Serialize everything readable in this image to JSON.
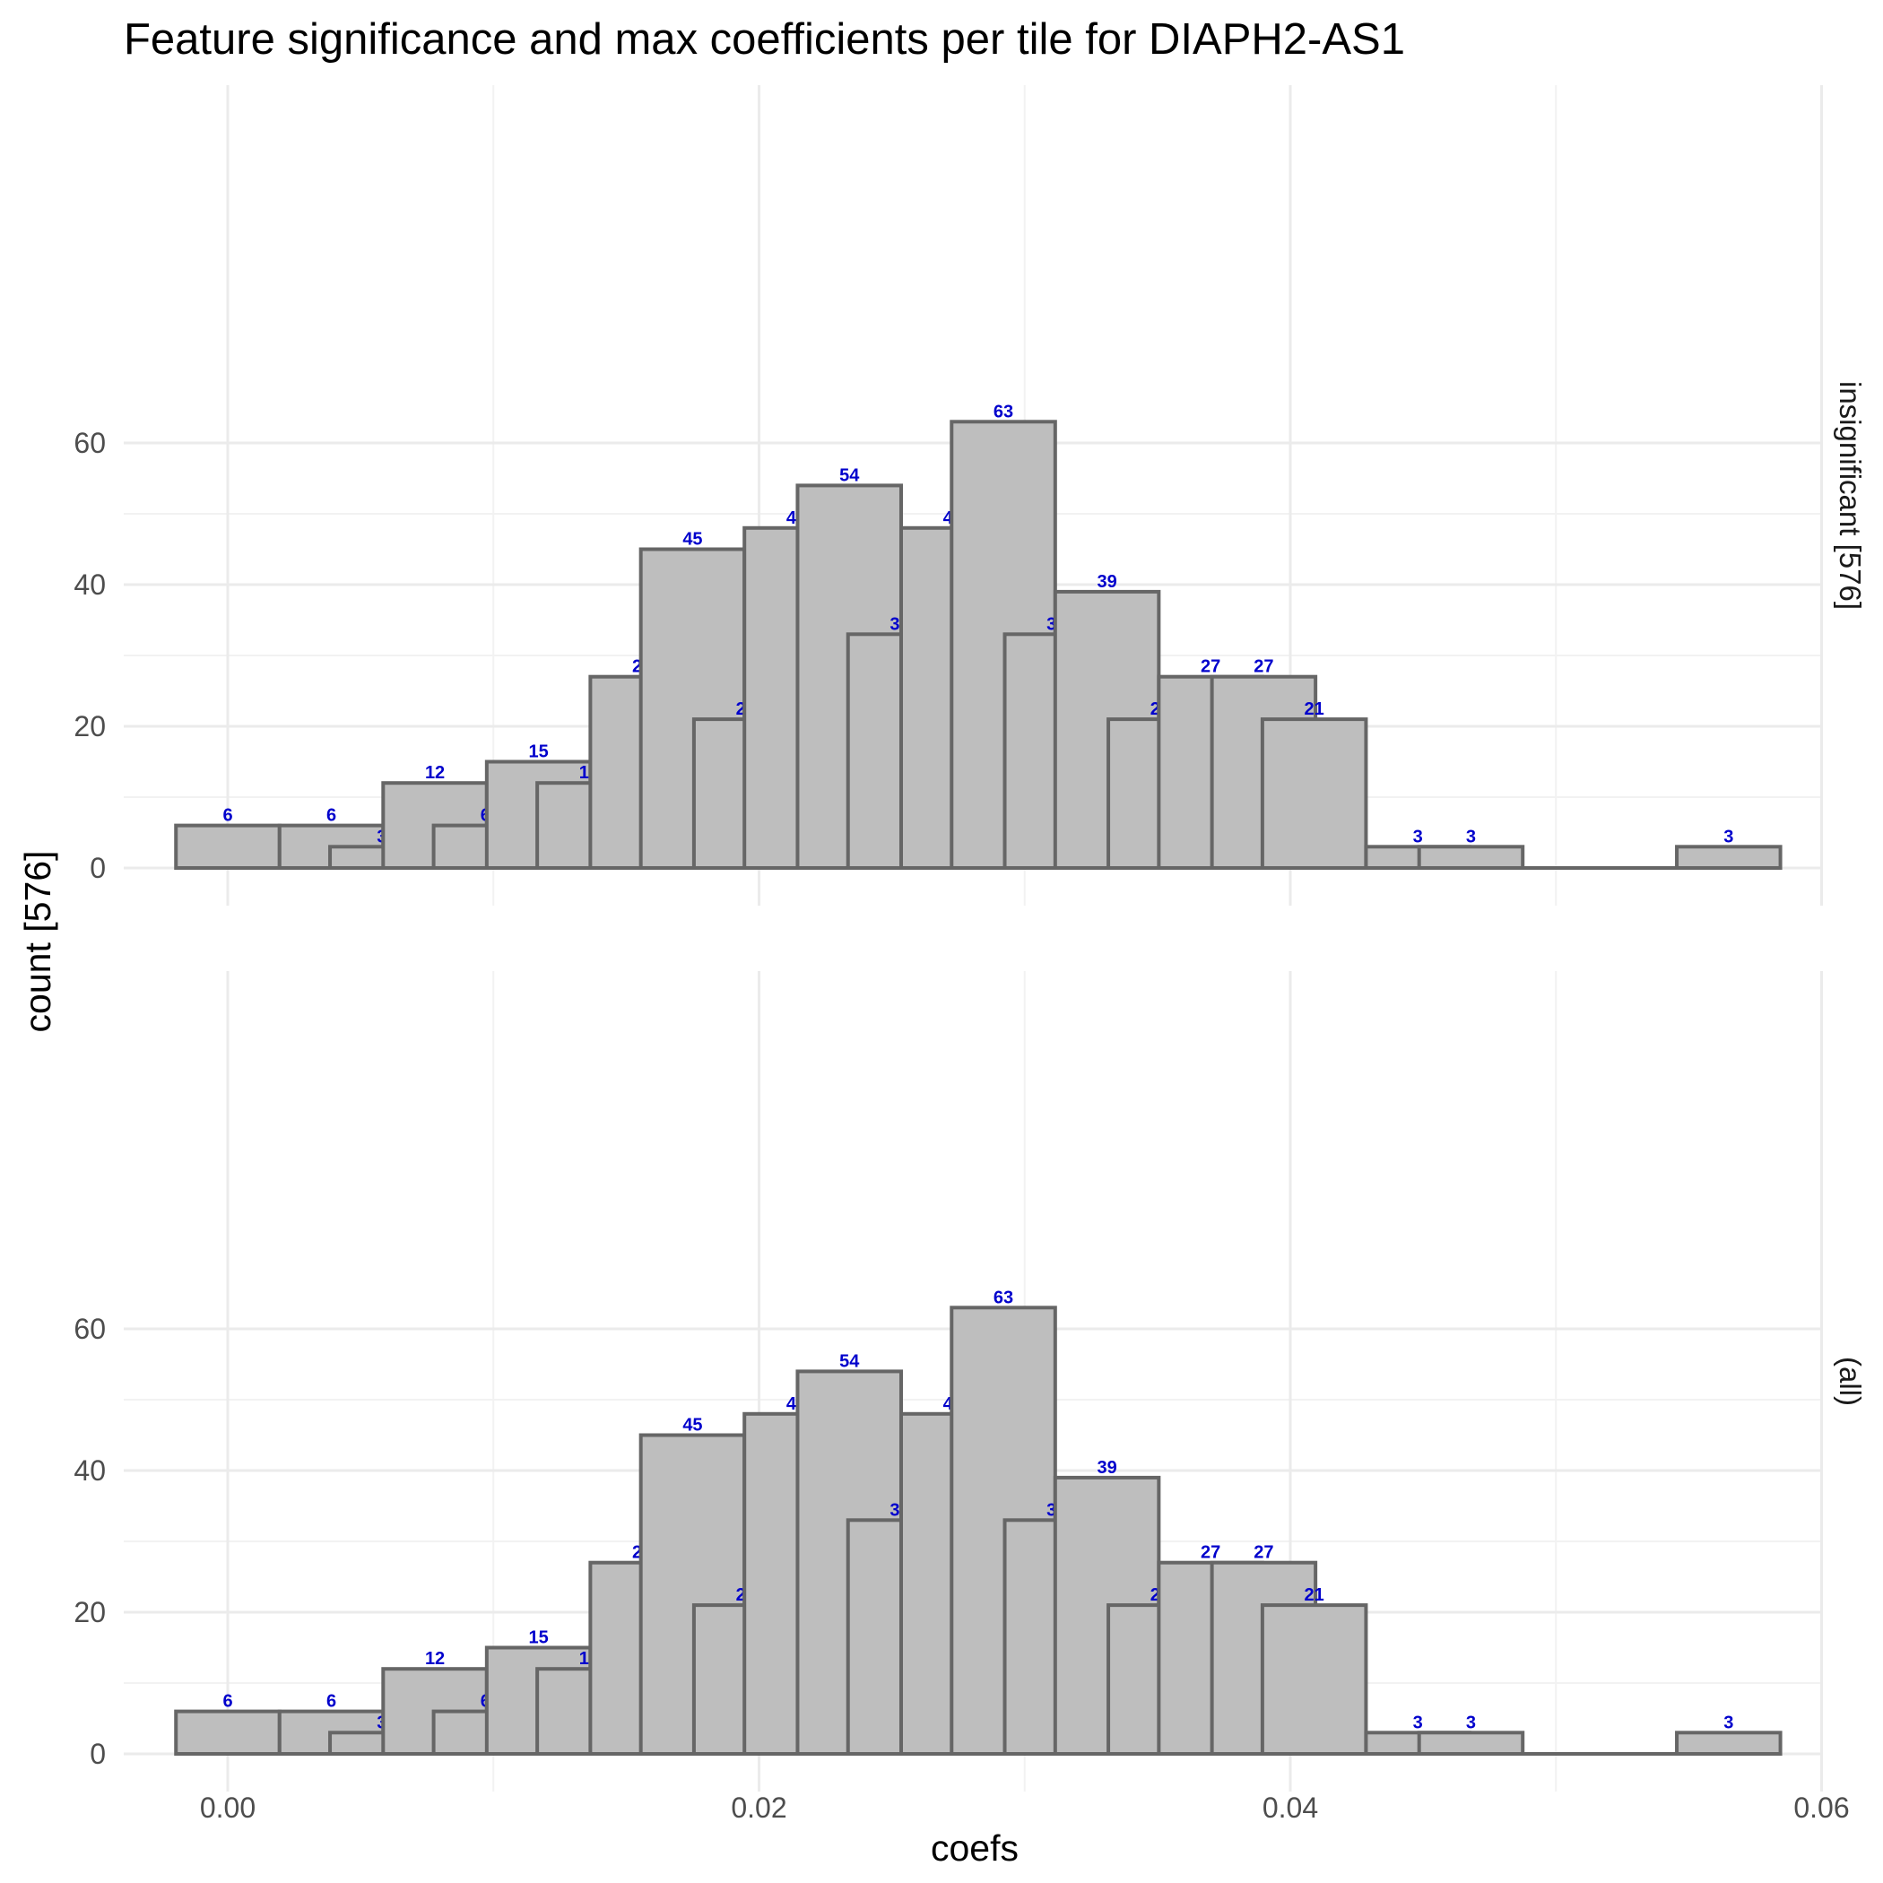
{
  "chart_data": {
    "type": "bar",
    "title": "Feature significance and max coefficients per tile for DIAPH2-AS1",
    "xlabel": "coefs",
    "ylabel": "count [576]",
    "xlim": [
      -0.004,
      0.06
    ],
    "ylim": [
      0,
      66
    ],
    "x_ticks": [
      0.0,
      0.02,
      0.04,
      0.06
    ],
    "x_tick_labels": [
      "0.00",
      "0.02",
      "0.04",
      "0.06"
    ],
    "y_ticks": [
      0,
      20,
      40,
      60
    ],
    "y_tick_labels": [
      "0",
      "20",
      "40",
      "60"
    ],
    "grid": true,
    "bar_fill": "#bebebe",
    "bar_stroke": "#666666",
    "label_color": "#0000cc",
    "bin_width": 0.0039,
    "bin_centers": [
      0.0,
      0.0039,
      0.0058,
      0.0078,
      0.0097,
      0.0117,
      0.0136,
      0.0156,
      0.0175,
      0.0195,
      0.0214,
      0.0234,
      0.0253,
      0.0273,
      0.0292,
      0.0312,
      0.0331,
      0.0351,
      0.037,
      0.039,
      0.0409,
      0.0448,
      0.0468,
      0.0565
    ],
    "panels": [
      {
        "strip_label": "insignificant [576]",
        "values": [
          6,
          6,
          3,
          12,
          6,
          15,
          12,
          27,
          45,
          21,
          48,
          54,
          33,
          48,
          63,
          33,
          39,
          21,
          27,
          27,
          21,
          3,
          3,
          3
        ],
        "labels": [
          "6",
          "6",
          "3",
          "12",
          "6",
          "15",
          "12",
          "27",
          "45",
          "21",
          "48",
          "54",
          "33",
          "48",
          "63",
          "33",
          "39",
          "21",
          "27",
          "27",
          "21",
          "3",
          "3",
          "3"
        ]
      },
      {
        "strip_label": "(all)",
        "values": [
          6,
          6,
          3,
          12,
          6,
          15,
          12,
          27,
          45,
          21,
          48,
          54,
          33,
          48,
          63,
          33,
          39,
          21,
          27,
          27,
          21,
          3,
          3,
          3
        ],
        "labels": [
          "6",
          "6",
          "3",
          "12",
          "6",
          "15",
          "12",
          "27",
          "45",
          "21",
          "48",
          "54",
          "33",
          "48",
          "63",
          "33",
          "39",
          "21",
          "27",
          "27",
          "21",
          "3",
          "3",
          "3"
        ]
      }
    ]
  }
}
